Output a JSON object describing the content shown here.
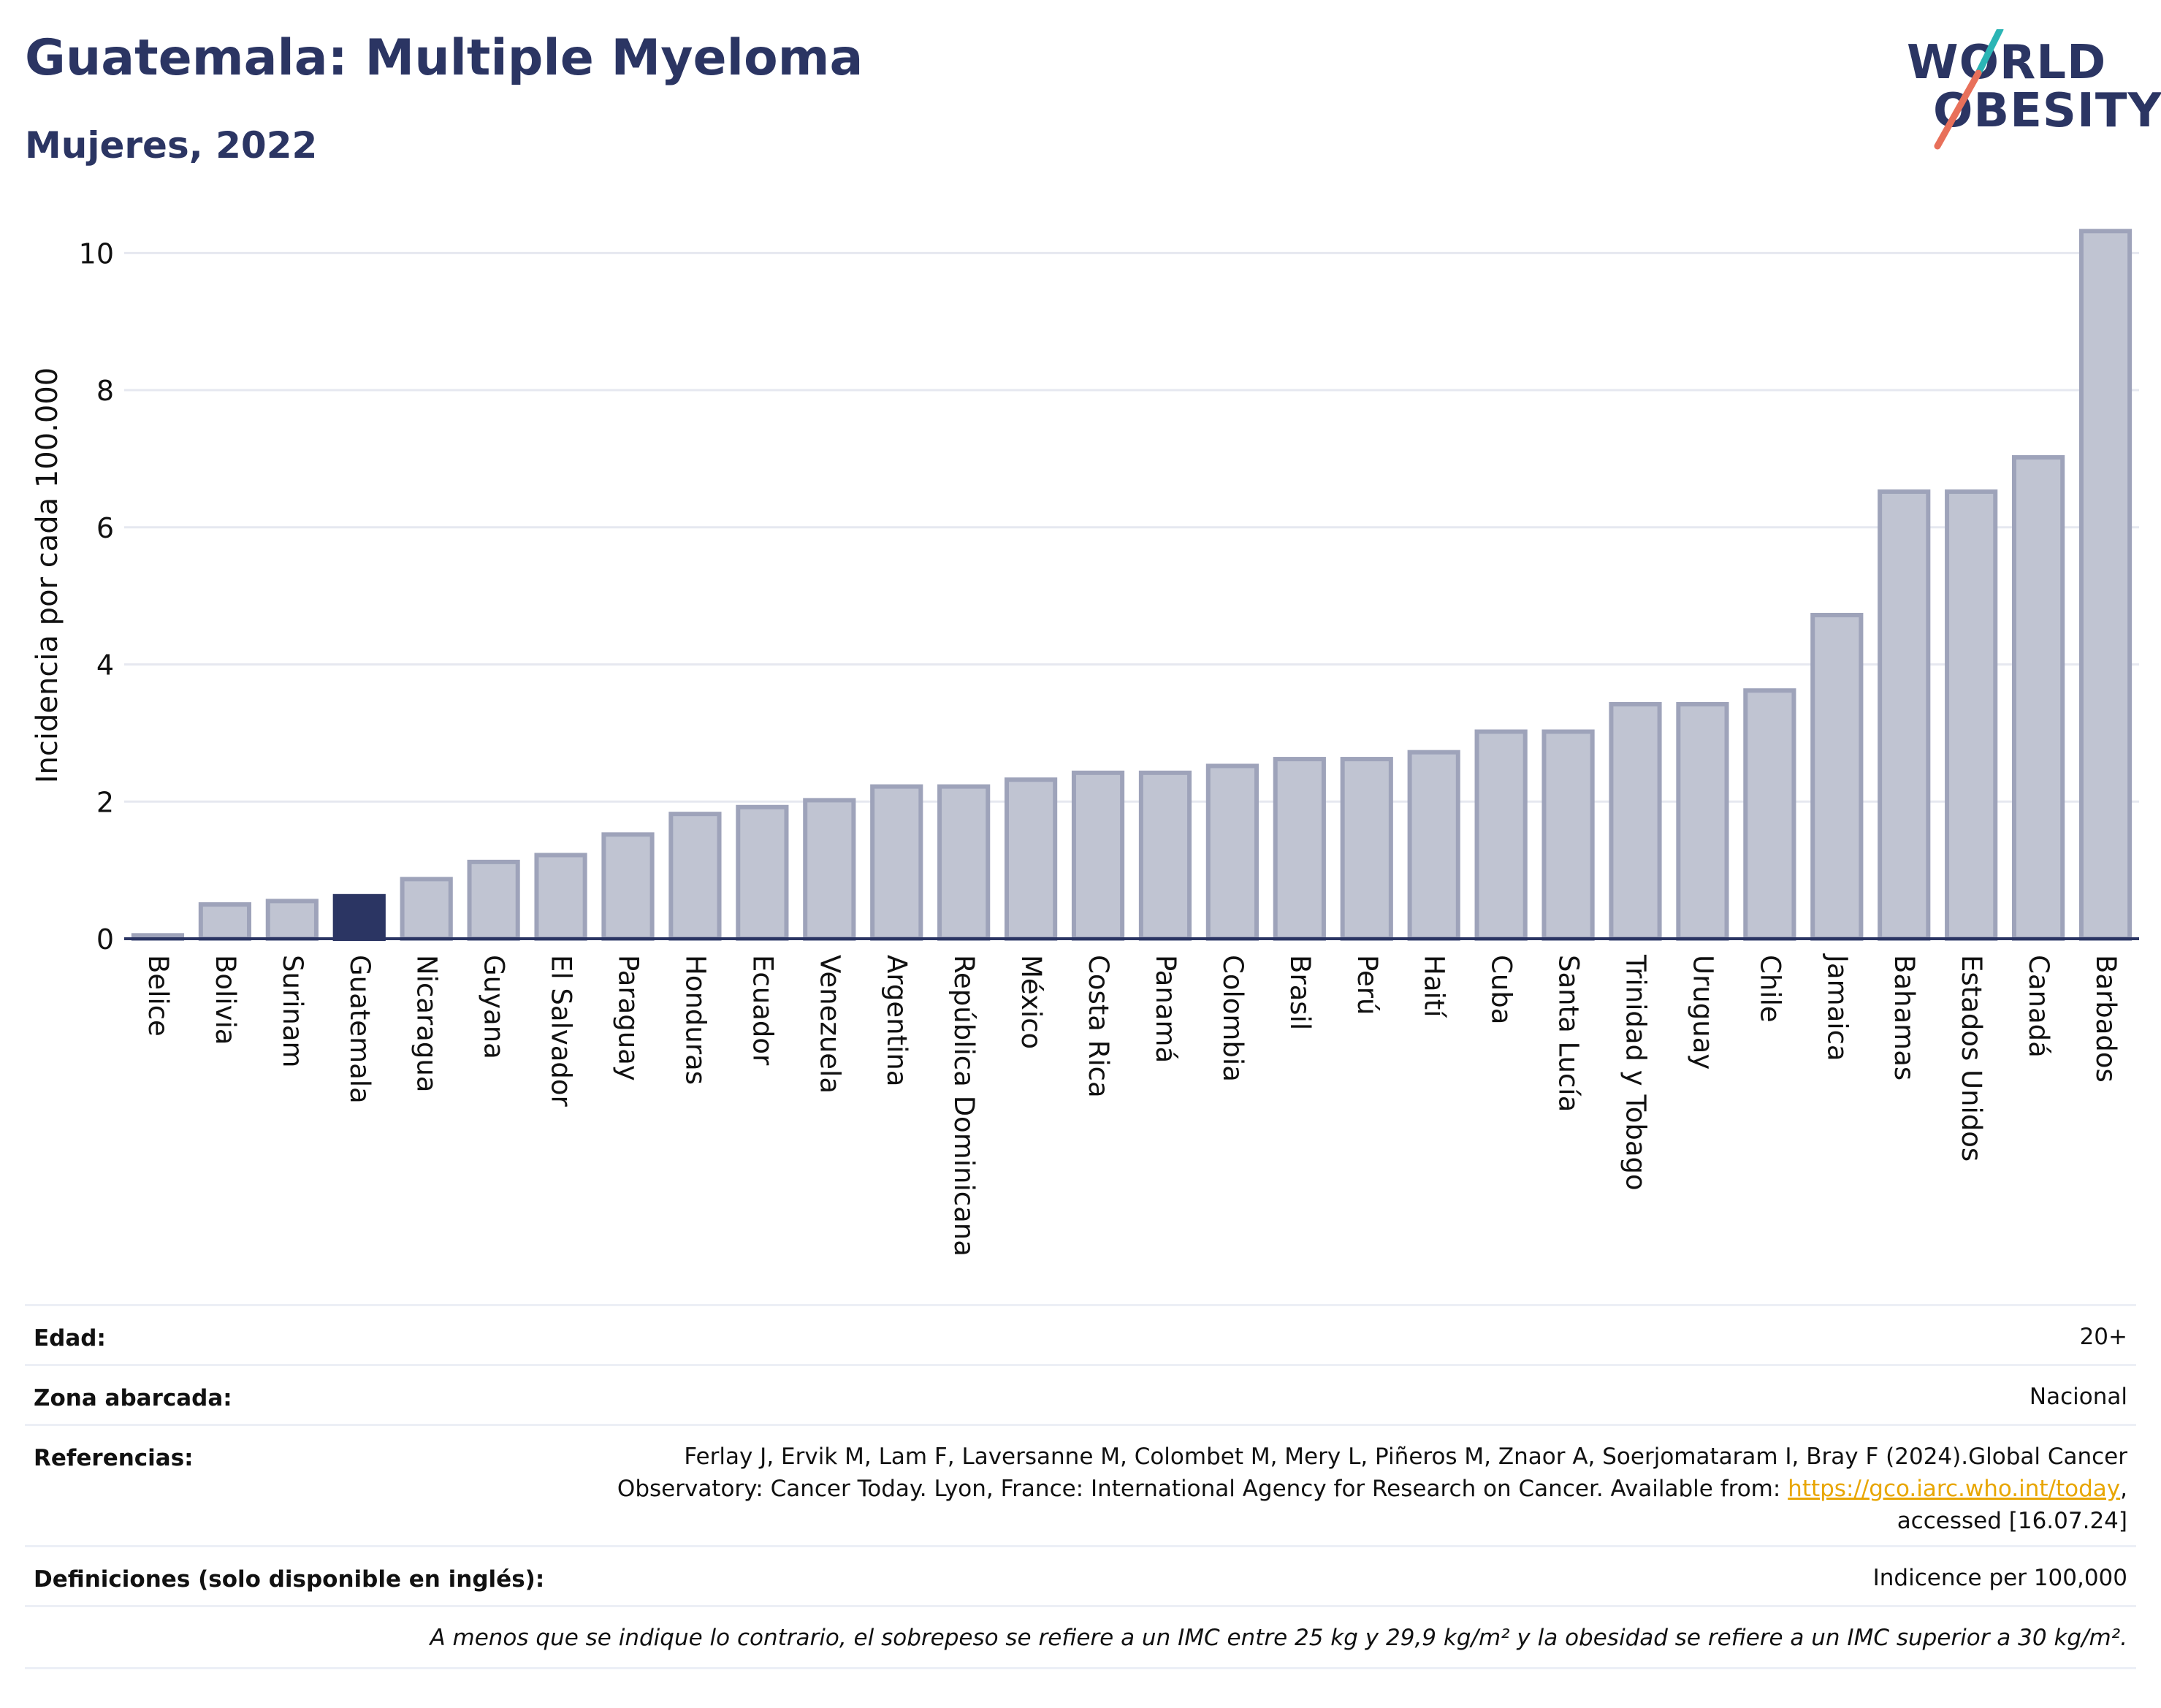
{
  "header": {
    "title": "Guatemala: Multiple Myeloma",
    "subtitle": "Mujeres, 2022"
  },
  "logo": {
    "line1": "WORLD",
    "line2": "OBESITY",
    "colors": {
      "text": "#2b3563",
      "slash_top": "#2bb5b5",
      "slash_bottom": "#e8705a"
    }
  },
  "chart_data": {
    "type": "bar",
    "title": "",
    "xlabel": "",
    "ylabel": "Incidencia por cada 100.000",
    "ylim": [
      0,
      10.6
    ],
    "yticks": [
      0,
      2,
      4,
      6,
      8,
      10
    ],
    "grid": true,
    "categories": [
      "Belice",
      "Bolivia",
      "Surinam",
      "Guatemala",
      "Nicaragua",
      "Guyana",
      "El Salvador",
      "Paraguay",
      "Honduras",
      "Ecuador",
      "Venezuela",
      "Argentina",
      "República Dominicana",
      "México",
      "Costa Rica",
      "Panamá",
      "Colombia",
      "Brasil",
      "Perú",
      "Haití",
      "Cuba",
      "Santa Lucía",
      "Trinidad y Tobago",
      "Uruguay",
      "Chile",
      "Jamaica",
      "Bahamas",
      "Estados Unidos",
      "Canadá",
      "Barbados"
    ],
    "values": [
      0.05,
      0.5,
      0.55,
      0.62,
      0.87,
      1.12,
      1.22,
      1.52,
      1.82,
      1.92,
      2.02,
      2.22,
      2.22,
      2.32,
      2.42,
      2.42,
      2.52,
      2.62,
      2.62,
      2.72,
      3.02,
      3.02,
      3.42,
      3.42,
      3.62,
      4.72,
      6.52,
      6.52,
      7.02,
      10.32
    ],
    "highlight": "Guatemala",
    "colors": {
      "bar": "#c0c4d2",
      "bar_edge": "#9ea3ba",
      "highlight": "#2b3563",
      "grid": "#e6e8f0",
      "axis": "#2b3563"
    }
  },
  "meta": {
    "age_label": "Edad:",
    "age_value": "20+",
    "area_label": "Zona abarcada:",
    "area_value": "Nacional",
    "refs_label": "Referencias:",
    "refs_line1": "Ferlay J, Ervik M, Lam F, Laversanne M, Colombet M, Mery L, Piñeros M, Znaor A, Soerjomataram I, Bray F (2024).Global Cancer",
    "refs_line2_pre": "Observatory: Cancer Today. Lyon, France: International Agency for Research on Cancer. Available from: ",
    "refs_link": "https://gco.iarc.who.int/today",
    "refs_line2_post": ",",
    "refs_line3": "accessed [16.07.24]",
    "defs_label": "Definiciones (solo disponible en inglés):",
    "defs_value": "Indicence per 100,000",
    "footnote": "A menos que se indique lo contrario, el sobrepeso se refiere a un IMC entre 25 kg y 29,9 kg/m² y la obesidad se refiere a un IMC superior a 30 kg/m²."
  }
}
